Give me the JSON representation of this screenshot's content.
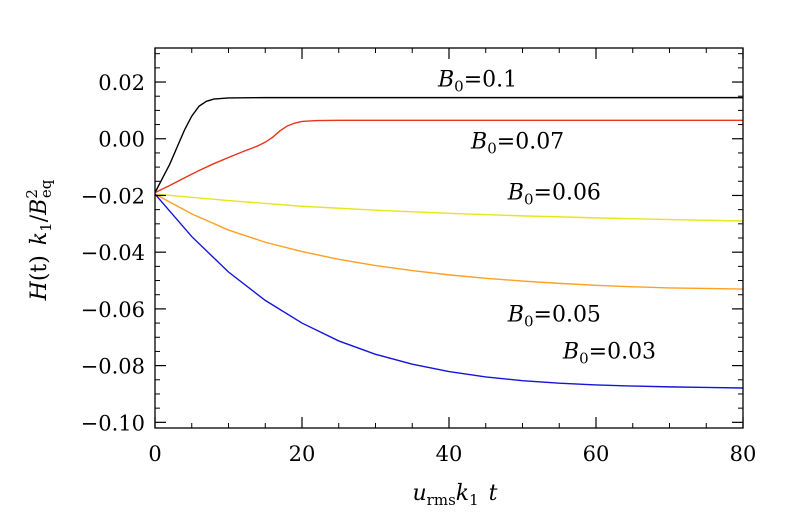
{
  "chart_data": {
    "type": "line",
    "title": "",
    "xlabel": {
      "var": "u",
      "sub": "rms",
      "var2": "k",
      "sub2": "1",
      "tail": "t"
    },
    "ylabel": {
      "func": "H",
      "arg": "(t)",
      "k": "k",
      "k_sub": "1",
      "slash": "/",
      "b": "B",
      "b_sup": "2",
      "b_sub": "eq"
    },
    "xlim": [
      0,
      80
    ],
    "ylim": [
      -0.102,
      0.032
    ],
    "xticks": [
      {
        "value": 0,
        "label": "0"
      },
      {
        "value": 20,
        "label": "20"
      },
      {
        "value": 40,
        "label": "40"
      },
      {
        "value": 60,
        "label": "60"
      },
      {
        "value": 80,
        "label": "80"
      }
    ],
    "yticks": [
      {
        "value": 0.02,
        "label": "0.02"
      },
      {
        "value": 0.0,
        "label": "0.00"
      },
      {
        "value": -0.02,
        "label": "−0.02"
      },
      {
        "value": -0.04,
        "label": "−0.04"
      },
      {
        "value": -0.06,
        "label": "−0.06"
      },
      {
        "value": -0.08,
        "label": "−0.08"
      },
      {
        "value": -0.1,
        "label": "−0.10"
      }
    ],
    "x_minor_step": 5,
    "y_minor_step": 0.005,
    "grid": false,
    "legend": "none",
    "series": [
      {
        "label_var": "B",
        "label_sub": "0",
        "label_value": "=0.1",
        "color": "#000000",
        "label_anchor": {
          "x": 38.5,
          "y": 0.0185
        },
        "points": [
          [
            0,
            -0.019
          ],
          [
            1,
            -0.014
          ],
          [
            2,
            -0.009
          ],
          [
            3,
            -0.003
          ],
          [
            4,
            0.003
          ],
          [
            5,
            0.008
          ],
          [
            6,
            0.0115
          ],
          [
            7,
            0.0132
          ],
          [
            8,
            0.014
          ],
          [
            10,
            0.0144
          ],
          [
            15,
            0.0145
          ],
          [
            80,
            0.0145
          ]
        ]
      },
      {
        "label_var": "B",
        "label_sub": "0",
        "label_value": "=0.07",
        "color": "#e8341c",
        "label_anchor": {
          "x": 43,
          "y": -0.0035
        },
        "points": [
          [
            0,
            -0.019
          ],
          [
            2,
            -0.0165
          ],
          [
            4,
            -0.0138
          ],
          [
            6,
            -0.0112
          ],
          [
            8,
            -0.0088
          ],
          [
            10,
            -0.0066
          ],
          [
            12,
            -0.0045
          ],
          [
            14,
            -0.0025
          ],
          [
            15,
            -0.0012
          ],
          [
            16,
            0.0005
          ],
          [
            17,
            0.0028
          ],
          [
            18,
            0.0045
          ],
          [
            19,
            0.0055
          ],
          [
            20,
            0.0061
          ],
          [
            22,
            0.0064
          ],
          [
            25,
            0.0065
          ],
          [
            80,
            0.0065
          ]
        ]
      },
      {
        "label_var": "B",
        "label_sub": "0",
        "label_value": "=0.06",
        "color": "#e6e61a",
        "label_anchor": {
          "x": 48,
          "y": -0.0215
        },
        "points": [
          [
            0,
            -0.0195
          ],
          [
            10,
            -0.0218
          ],
          [
            20,
            -0.0238
          ],
          [
            30,
            -0.0252
          ],
          [
            40,
            -0.0263
          ],
          [
            50,
            -0.0272
          ],
          [
            60,
            -0.0279
          ],
          [
            70,
            -0.0285
          ],
          [
            80,
            -0.029
          ]
        ]
      },
      {
        "label_var": "B",
        "label_sub": "0",
        "label_value": "=0.05",
        "color": "#ffa020",
        "label_anchor": {
          "x": 48,
          "y": -0.0645
        },
        "points": [
          [
            0,
            -0.0195
          ],
          [
            5,
            -0.0265
          ],
          [
            10,
            -0.0322
          ],
          [
            15,
            -0.0365
          ],
          [
            20,
            -0.0398
          ],
          [
            25,
            -0.0425
          ],
          [
            30,
            -0.0447
          ],
          [
            35,
            -0.0465
          ],
          [
            40,
            -0.048
          ],
          [
            45,
            -0.0492
          ],
          [
            50,
            -0.0502
          ],
          [
            55,
            -0.051
          ],
          [
            60,
            -0.0517
          ],
          [
            65,
            -0.0522
          ],
          [
            70,
            -0.0526
          ],
          [
            75,
            -0.0528
          ],
          [
            80,
            -0.053
          ]
        ]
      },
      {
        "label_var": "B",
        "label_sub": "0",
        "label_value": "=0.03",
        "color": "#1414dc",
        "label_anchor": {
          "x": 55.5,
          "y": -0.0775
        },
        "points": [
          [
            0,
            -0.0195
          ],
          [
            2,
            -0.0255
          ],
          [
            5,
            -0.0345
          ],
          [
            10,
            -0.047
          ],
          [
            15,
            -0.057
          ],
          [
            20,
            -0.065
          ],
          [
            25,
            -0.0713
          ],
          [
            30,
            -0.076
          ],
          [
            35,
            -0.0795
          ],
          [
            40,
            -0.0821
          ],
          [
            45,
            -0.084
          ],
          [
            50,
            -0.0853
          ],
          [
            55,
            -0.0862
          ],
          [
            60,
            -0.0868
          ],
          [
            65,
            -0.0872
          ],
          [
            70,
            -0.0875
          ],
          [
            75,
            -0.0877
          ],
          [
            80,
            -0.0879
          ]
        ]
      }
    ]
  }
}
